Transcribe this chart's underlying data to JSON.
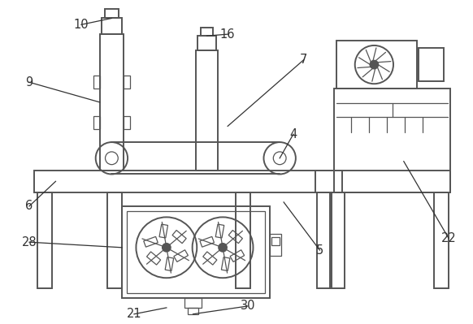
{
  "bg_color": "#ffffff",
  "line_color": "#555555",
  "line_width": 1.4,
  "thin_line": 0.9,
  "ann_color": "#333333",
  "font_size": 10.5
}
